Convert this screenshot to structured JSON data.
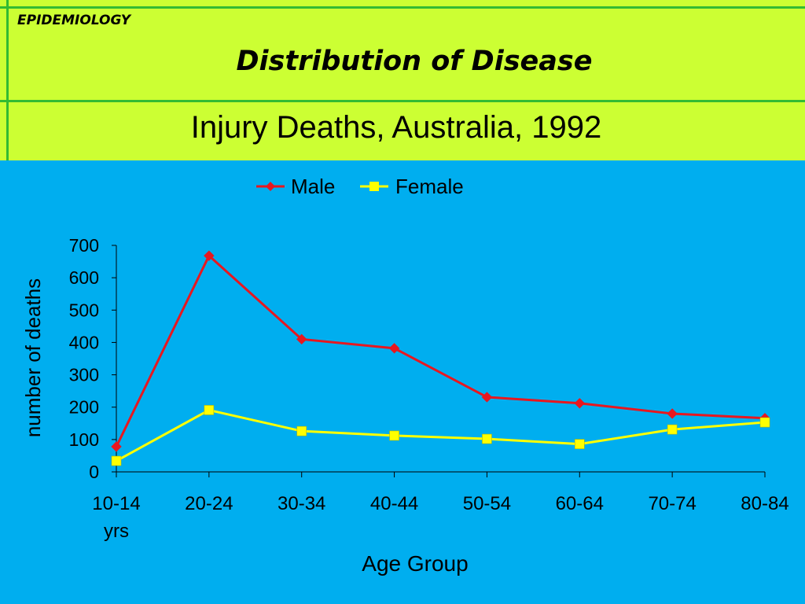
{
  "header": {
    "section": "EPIDEMIOLOGY",
    "title": "Distribution of Disease"
  },
  "colors": {
    "background": "#00aeef",
    "header": "#ccff33",
    "rule": "#33bb33",
    "male": "#e8171f",
    "female": "#ffff00"
  },
  "chart_data": {
    "type": "line",
    "title": "Injury Deaths, Australia, 1992",
    "xlabel": "Age Group",
    "ylabel": "number of deaths",
    "categories": [
      "10-14",
      "20-24",
      "30-34",
      "40-44",
      "50-54",
      "60-64",
      "70-74",
      "80-84"
    ],
    "category_sublabel": {
      "index": 0,
      "text": "yrs"
    },
    "ylim": [
      0,
      700
    ],
    "yticks": [
      0,
      100,
      200,
      300,
      400,
      500,
      600,
      700
    ],
    "grid": false,
    "legend": "top",
    "series": [
      {
        "name": "Male",
        "marker": "diamond",
        "color": "#e8171f",
        "values": [
          78,
          668,
          410,
          382,
          231,
          212,
          180,
          166
        ]
      },
      {
        "name": "Female",
        "marker": "square",
        "color": "#ffff00",
        "values": [
          34,
          191,
          126,
          112,
          102,
          86,
          131,
          153
        ]
      }
    ]
  }
}
